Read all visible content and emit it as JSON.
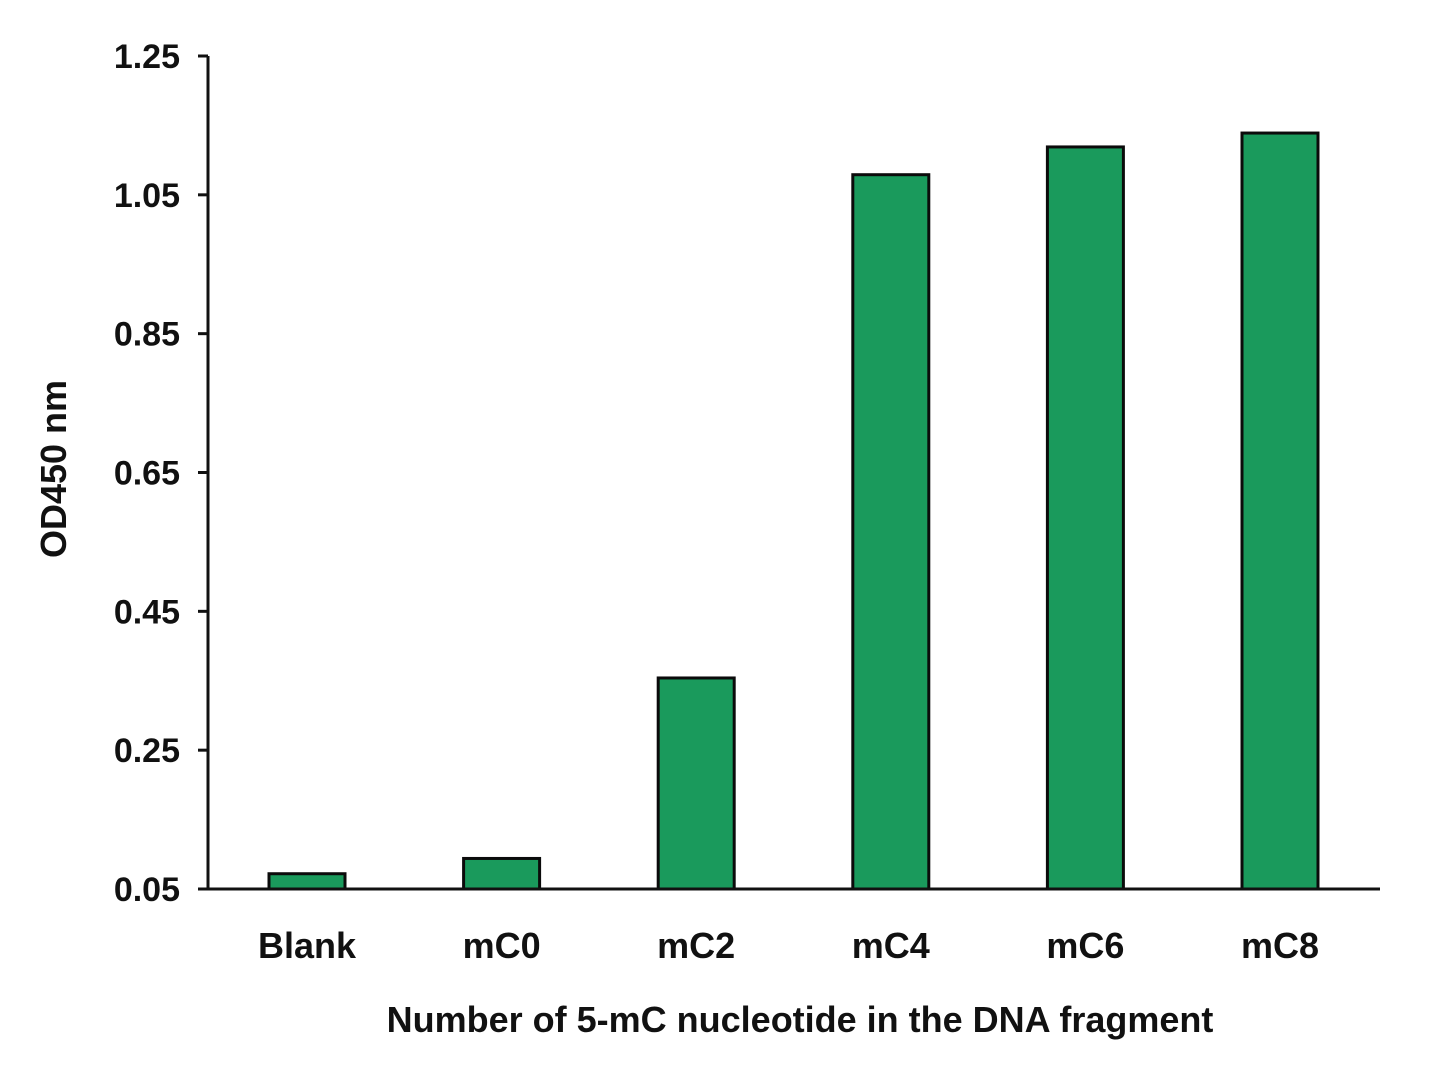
{
  "chart_data": {
    "type": "bar",
    "title": "",
    "xlabel": "Number of 5-mC nucleotide in the DNA fragment",
    "ylabel": "OD450 nm",
    "categories": [
      "Blank",
      "mC0",
      "mC2",
      "mC4",
      "mC6",
      "mC8"
    ],
    "values": [
      0.072,
      0.094,
      0.354,
      1.079,
      1.119,
      1.139
    ],
    "ylim": [
      0.05,
      1.25
    ],
    "yticks": [
      0.05,
      0.25,
      0.45,
      0.65,
      0.85,
      1.05,
      1.25
    ],
    "ytick_labels": [
      "0.05",
      "0.25",
      "0.45",
      "0.65",
      "0.85",
      "1.05",
      "1.25"
    ],
    "grid": false,
    "legend": "none",
    "colors": {
      "bar": "#1a9a5c",
      "bar_edge": "#0b0b0b",
      "axis": "#111111"
    }
  }
}
